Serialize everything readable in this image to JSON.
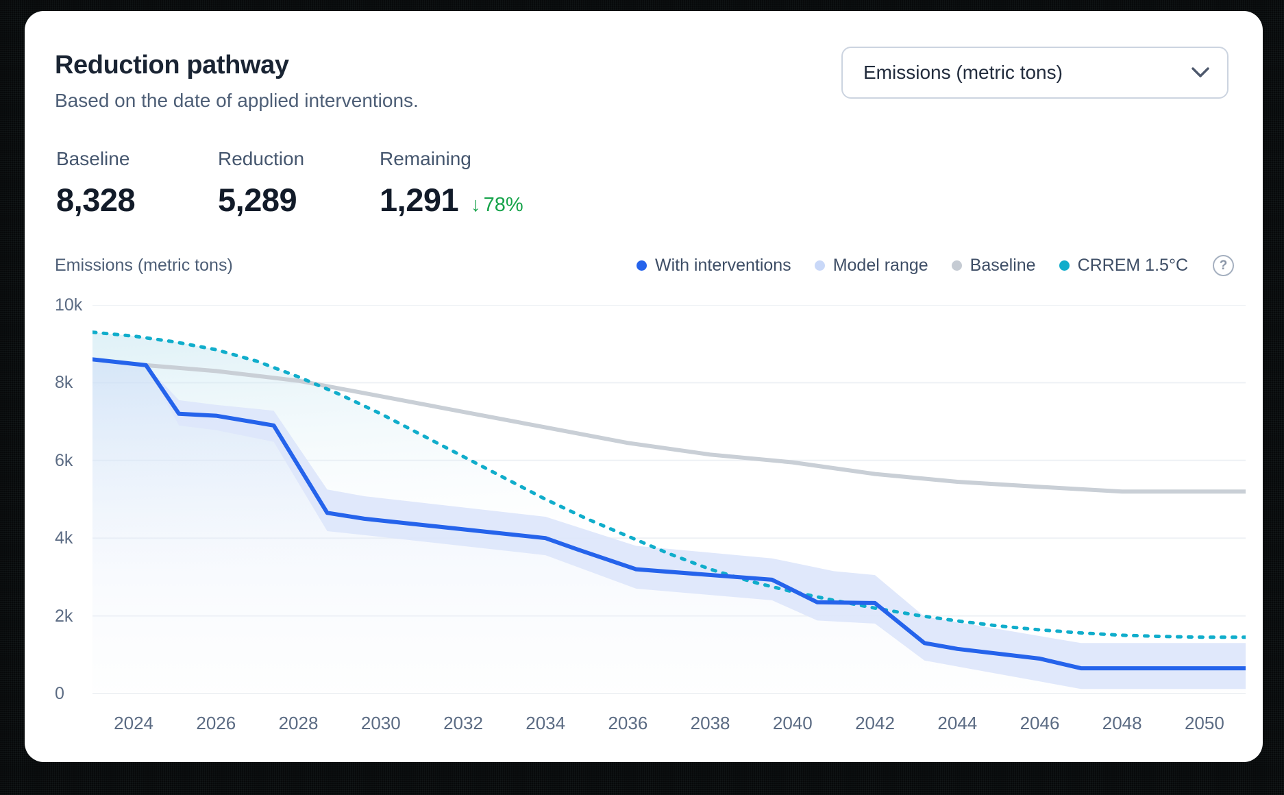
{
  "header": {
    "title": "Reduction pathway",
    "subtitle": "Based on the date of applied interventions."
  },
  "dropdown": {
    "value": "Emissions (metric tons)"
  },
  "stats": [
    {
      "label": "Baseline",
      "value": "8,328"
    },
    {
      "label": "Reduction",
      "value": "5,289"
    },
    {
      "label": "Remaining",
      "value": "1,291",
      "delta_arrow": "↓",
      "delta": "78%",
      "delta_color": "#16a34a"
    }
  ],
  "chart_header": {
    "axis_label": "Emissions (metric tons)",
    "legend": [
      {
        "label": "With interventions",
        "color": "#2563eb"
      },
      {
        "label": "Model range",
        "color": "#c9d8f8"
      },
      {
        "label": "Baseline",
        "color": "#c5cbd3"
      },
      {
        "label": "CRREM 1.5°C",
        "color": "#10adcb",
        "help": "?"
      }
    ]
  },
  "chart_data": {
    "type": "line",
    "title": "Reduction pathway",
    "ylabel": "Emissions (metric tons)",
    "x_range": [
      2023,
      2051
    ],
    "y_range": [
      0,
      10000
    ],
    "grid": "horizontal",
    "legend_position": "top-right",
    "y_ticks": [
      {
        "value": 10000,
        "label": "10k"
      },
      {
        "value": 8000,
        "label": "8k"
      },
      {
        "value": 6000,
        "label": "6k"
      },
      {
        "value": 4000,
        "label": "4k"
      },
      {
        "value": 2000,
        "label": "2k"
      },
      {
        "value": 0,
        "label": "0"
      }
    ],
    "x_ticks": [
      {
        "value": 2024,
        "label": "2024"
      },
      {
        "value": 2026,
        "label": "2026"
      },
      {
        "value": 2028,
        "label": "2028"
      },
      {
        "value": 2030,
        "label": "2030"
      },
      {
        "value": 2032,
        "label": "2032"
      },
      {
        "value": 2034,
        "label": "2034"
      },
      {
        "value": 2036,
        "label": "2036"
      },
      {
        "value": 2038,
        "label": "2038"
      },
      {
        "value": 2040,
        "label": "2040"
      },
      {
        "value": 2042,
        "label": "2042"
      },
      {
        "value": 2044,
        "label": "2044"
      },
      {
        "value": 2046,
        "label": "2046"
      },
      {
        "value": 2048,
        "label": "2048"
      },
      {
        "value": 2050,
        "label": "2050"
      }
    ],
    "series": [
      {
        "name": "CRREM 1.5°C",
        "type": "line",
        "style": "dashed",
        "z": 2,
        "color": "#10adcb",
        "area_gradient": "gradCyan",
        "points": [
          [
            2023,
            9300
          ],
          [
            2024,
            9200
          ],
          [
            2025,
            9050
          ],
          [
            2026,
            8850
          ],
          [
            2027,
            8550
          ],
          [
            2028,
            8150
          ],
          [
            2029,
            7700
          ],
          [
            2030,
            7200
          ],
          [
            2031,
            6650
          ],
          [
            2032,
            6100
          ],
          [
            2033,
            5550
          ],
          [
            2034,
            5000
          ],
          [
            2035,
            4500
          ],
          [
            2036,
            4050
          ],
          [
            2037,
            3600
          ],
          [
            2038,
            3200
          ],
          [
            2039,
            2880
          ],
          [
            2040,
            2620
          ],
          [
            2041,
            2400
          ],
          [
            2042,
            2200
          ],
          [
            2043,
            2020
          ],
          [
            2044,
            1870
          ],
          [
            2045,
            1740
          ],
          [
            2046,
            1640
          ],
          [
            2047,
            1560
          ],
          [
            2048,
            1500
          ],
          [
            2049,
            1470
          ],
          [
            2050,
            1450
          ],
          [
            2051,
            1450
          ]
        ]
      },
      {
        "name": "With interventions",
        "type": "line",
        "style": "solid",
        "z": 3,
        "color": "#2563eb",
        "area_gradient": "gradBlue",
        "points": [
          [
            2023,
            8600
          ],
          [
            2024.3,
            8450
          ],
          [
            2025.1,
            7200
          ],
          [
            2026,
            7150
          ],
          [
            2027.4,
            6900
          ],
          [
            2028.7,
            4650
          ],
          [
            2029.6,
            4500
          ],
          [
            2034,
            4000
          ],
          [
            2034.8,
            3700
          ],
          [
            2036.2,
            3200
          ],
          [
            2039.5,
            2930
          ],
          [
            2040.6,
            2350
          ],
          [
            2042,
            2330
          ],
          [
            2043.2,
            1300
          ],
          [
            2044,
            1150
          ],
          [
            2046,
            900
          ],
          [
            2047,
            650
          ],
          [
            2051,
            650
          ]
        ]
      },
      {
        "name": "Model range",
        "type": "band",
        "color": "#dde5fb",
        "upper": [
          [
            2024.3,
            8450
          ],
          [
            2025.1,
            7550
          ],
          [
            2026,
            7430
          ],
          [
            2027.4,
            7280
          ],
          [
            2028.7,
            5250
          ],
          [
            2029.6,
            5080
          ],
          [
            2034,
            4550
          ],
          [
            2036.2,
            3800
          ],
          [
            2039.5,
            3480
          ],
          [
            2041,
            3150
          ],
          [
            2042,
            3050
          ],
          [
            2043.2,
            1980
          ],
          [
            2044.5,
            1750
          ],
          [
            2047,
            1300
          ],
          [
            2051,
            1300
          ]
        ],
        "lower": [
          [
            2024.3,
            8450
          ],
          [
            2025.1,
            6900
          ],
          [
            2026,
            6780
          ],
          [
            2027.4,
            6480
          ],
          [
            2028.7,
            4180
          ],
          [
            2029.6,
            4080
          ],
          [
            2034,
            3560
          ],
          [
            2036.2,
            2700
          ],
          [
            2039.5,
            2400
          ],
          [
            2040.6,
            1880
          ],
          [
            2042,
            1800
          ],
          [
            2043.2,
            850
          ],
          [
            2047,
            120
          ],
          [
            2051,
            120
          ]
        ]
      },
      {
        "name": "Baseline",
        "type": "line",
        "style": "solid",
        "z": 1,
        "color": "#c9cfd6",
        "points": [
          [
            2024.3,
            8450
          ],
          [
            2026,
            8300
          ],
          [
            2028,
            8050
          ],
          [
            2030,
            7650
          ],
          [
            2032,
            7250
          ],
          [
            2034,
            6850
          ],
          [
            2036,
            6450
          ],
          [
            2038,
            6150
          ],
          [
            2040,
            5950
          ],
          [
            2041,
            5800
          ],
          [
            2042,
            5650
          ],
          [
            2044,
            5450
          ],
          [
            2046,
            5320
          ],
          [
            2048,
            5200
          ],
          [
            2051,
            5200
          ]
        ]
      }
    ]
  }
}
